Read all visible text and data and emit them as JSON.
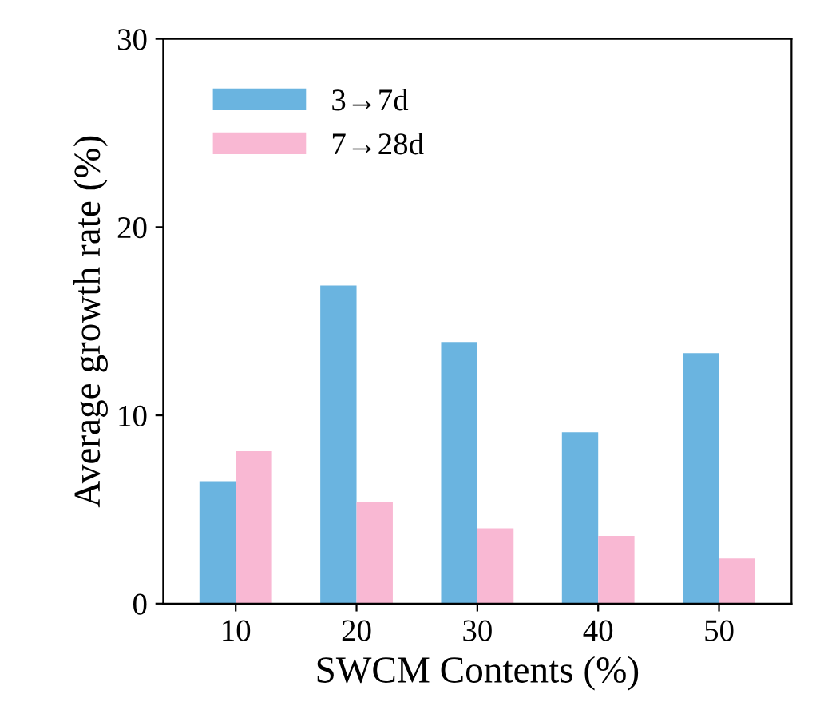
{
  "chart_data": {
    "type": "bar",
    "xlabel": "SWCM Contents (%)",
    "ylabel": "Average growth rate (%)",
    "categories": [
      "10",
      "20",
      "30",
      "40",
      "50"
    ],
    "series": [
      {
        "name": "3→7d",
        "color": "#6ab4e0",
        "values": [
          6.5,
          16.9,
          13.9,
          9.1,
          13.3
        ]
      },
      {
        "name": "7→28d",
        "color": "#f9b8d3",
        "values": [
          8.1,
          5.4,
          4.0,
          3.6,
          2.4
        ]
      }
    ],
    "ylim": [
      0,
      30
    ],
    "yticks": [
      0,
      10,
      20,
      30
    ],
    "grid": false,
    "legend": "top left"
  }
}
